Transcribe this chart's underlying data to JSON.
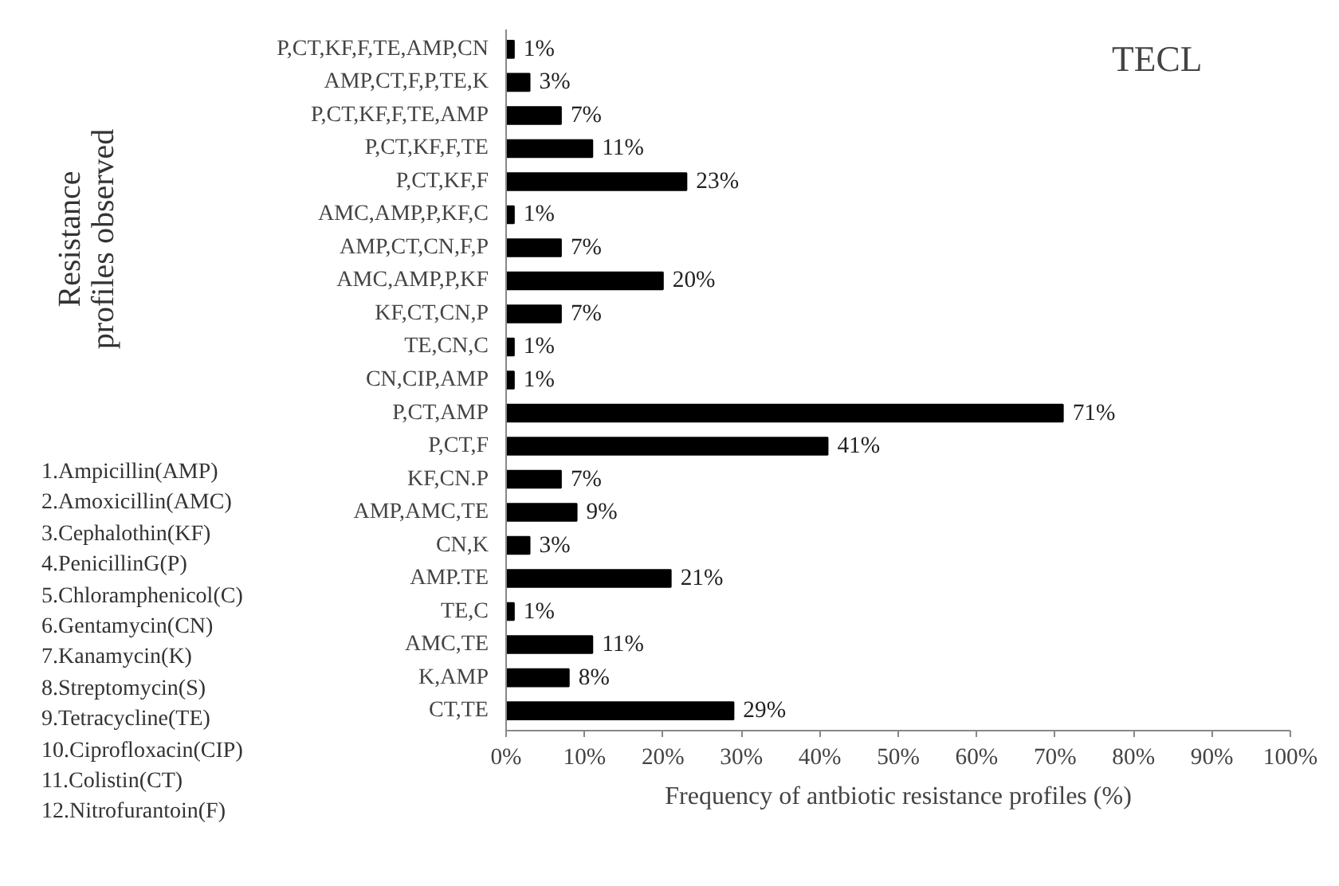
{
  "chart_data": {
    "type": "bar",
    "orientation": "horizontal",
    "title": "TECL",
    "xlabel": "Frequency of antbiotic resistance profiles (%)",
    "ylabel": "Resistance profiles observed",
    "categories": [
      "P,CT,KF,F,TE,AMP,CN",
      "AMP,CT,F,P,TE,K",
      "P,CT,KF,F,TE,AMP",
      "P,CT,KF,F,TE",
      "P,CT,KF,F",
      "AMC,AMP,P,KF,C",
      "AMP,CT,CN,F,P",
      "AMC,AMP,P,KF",
      "KF,CT,CN,P",
      "TE,CN,C",
      "CN,CIP,AMP",
      "P,CT,AMP",
      "P,CT,F",
      "KF,CN.P",
      "AMP,AMC,TE",
      "CN,K",
      "AMP.TE",
      "TE,C",
      "AMC,TE",
      "K,AMP",
      "CT,TE"
    ],
    "values": [
      1,
      3,
      7,
      11,
      23,
      1,
      7,
      20,
      7,
      1,
      1,
      71,
      41,
      7,
      9,
      3,
      21,
      1,
      11,
      8,
      29
    ],
    "value_labels": [
      "1%",
      "3%",
      "7%",
      "11%",
      "23%",
      "1%",
      "7%",
      "20%",
      "7%",
      "1%",
      "1%",
      "71%",
      "41%",
      "7%",
      "9%",
      "3%",
      "21%",
      "1%",
      "11%",
      "8%",
      "29%"
    ],
    "color": "#000000",
    "xlim": [
      0,
      100
    ],
    "xticks": [
      {
        "value": 0,
        "label": "0%"
      },
      {
        "value": 10,
        "label": "10%"
      },
      {
        "value": 20,
        "label": "20%"
      },
      {
        "value": 30,
        "label": "30%"
      },
      {
        "value": 40,
        "label": "40%"
      },
      {
        "value": 50,
        "label": "50%"
      },
      {
        "value": 60,
        "label": "60%"
      },
      {
        "value": 70,
        "label": "70%"
      },
      {
        "value": 80,
        "label": "80%"
      },
      {
        "value": 90,
        "label": "90%"
      },
      {
        "value": 100,
        "label": "100%"
      }
    ],
    "grid": false,
    "annotations": [
      "1.Ampicillin(AMP)",
      "2.Amoxicillin(AMC)",
      "3.Cephalothin(KF)",
      "4.PenicillinG(P)",
      "5.Chloramphenicol(C)",
      "6.Gentamycin(CN)",
      "7.Kanamycin(K)",
      "8.Streptomycin(S)",
      "9.Tetracycline(TE)",
      "10.Ciprofloxacin(CIP)",
      "11.Colistin(CT)",
      "12.Nitrofurantoin(F)"
    ]
  }
}
